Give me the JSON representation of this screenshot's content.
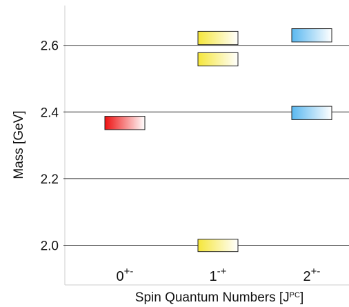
{
  "chart_data": {
    "type": "bar",
    "title": "",
    "xlabel": {
      "main": "Spin Quantum Numbers [J",
      "sup": "PC",
      "close": "]"
    },
    "ylabel": "Mass [GeV]",
    "ylim": [
      1.9,
      2.72
    ],
    "yticks": [
      "2.0",
      "2.2",
      "2.4",
      "2.6"
    ],
    "grid": "horizontal",
    "categories": [
      {
        "base": "0",
        "sup": "+-"
      },
      {
        "base": "1",
        "sup": "-+"
      },
      {
        "base": "2",
        "sup": "+-"
      }
    ],
    "states": [
      {
        "category": 0,
        "low": 2.347,
        "high": 2.387,
        "color": "#ee1111"
      },
      {
        "category": 1,
        "low": 1.981,
        "high": 2.018,
        "color": "#f5e63a"
      },
      {
        "category": 1,
        "low": 2.538,
        "high": 2.578,
        "color": "#f5e63a"
      },
      {
        "category": 1,
        "low": 2.602,
        "high": 2.642,
        "color": "#f5e63a"
      },
      {
        "category": 2,
        "low": 2.377,
        "high": 2.417,
        "color": "#5ab8f0"
      },
      {
        "category": 2,
        "low": 2.61,
        "high": 2.65,
        "color": "#5ab8f0"
      }
    ]
  }
}
